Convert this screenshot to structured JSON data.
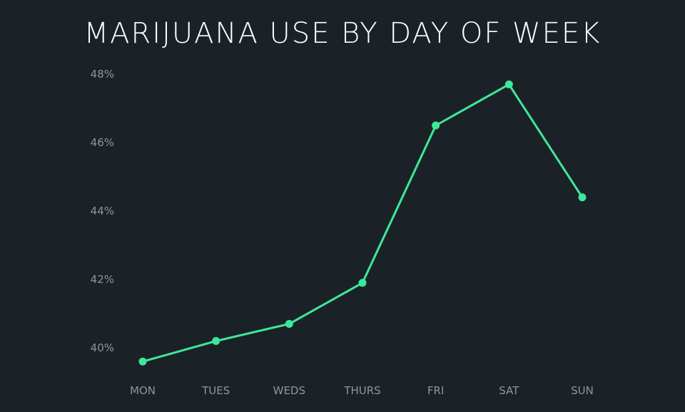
{
  "chart_data": {
    "type": "line",
    "title": "MARIJUANA USE BY DAY OF WEEK",
    "xlabel": "",
    "ylabel": "",
    "categories": [
      "MON",
      "TUES",
      "WEDS",
      "THURS",
      "FRI",
      "SAT",
      "SUN"
    ],
    "series": [
      {
        "values": [
          39.6,
          40.2,
          40.7,
          41.9,
          46.5,
          47.7,
          44.4
        ],
        "color": "#3ee89a"
      }
    ],
    "y_ticks": [
      40,
      42,
      44,
      46,
      48
    ],
    "y_tick_labels": [
      "40%",
      "42%",
      "44%",
      "46%",
      "48%"
    ],
    "ylim": [
      40,
      48
    ],
    "grid": false,
    "legend": "none",
    "colors": {
      "background": "#1b2227",
      "line": "#3ee89a",
      "tick_text": "#8f969b",
      "title": "#ffffff"
    }
  }
}
